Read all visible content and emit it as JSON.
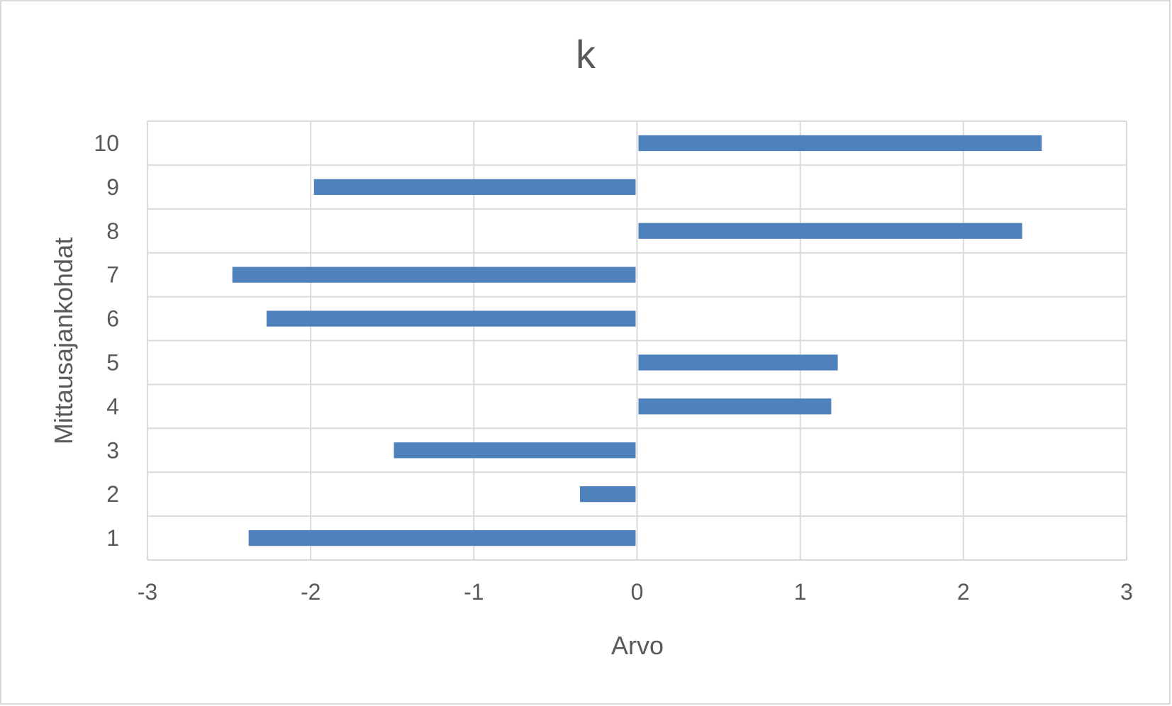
{
  "chart_data": {
    "type": "bar",
    "orientation": "horizontal",
    "title": "k",
    "xlabel": "Arvo",
    "ylabel": "Mittausajankohdat",
    "categories": [
      "1",
      "2",
      "3",
      "4",
      "5",
      "6",
      "7",
      "8",
      "9",
      "10"
    ],
    "series": [
      {
        "values": [
          -2.38,
          -0.35,
          -1.49,
          1.19,
          1.23,
          -2.27,
          -2.48,
          2.36,
          -1.98,
          2.48
        ]
      }
    ],
    "xlim": [
      -3,
      3
    ],
    "xticks": [
      "-3",
      "-2",
      "-1",
      "0",
      "1",
      "2",
      "3"
    ],
    "grid": true,
    "legend": "none",
    "colors": {
      "bar": "#4f81bd",
      "grid": "#d9d9d9",
      "text": "#595959"
    }
  }
}
